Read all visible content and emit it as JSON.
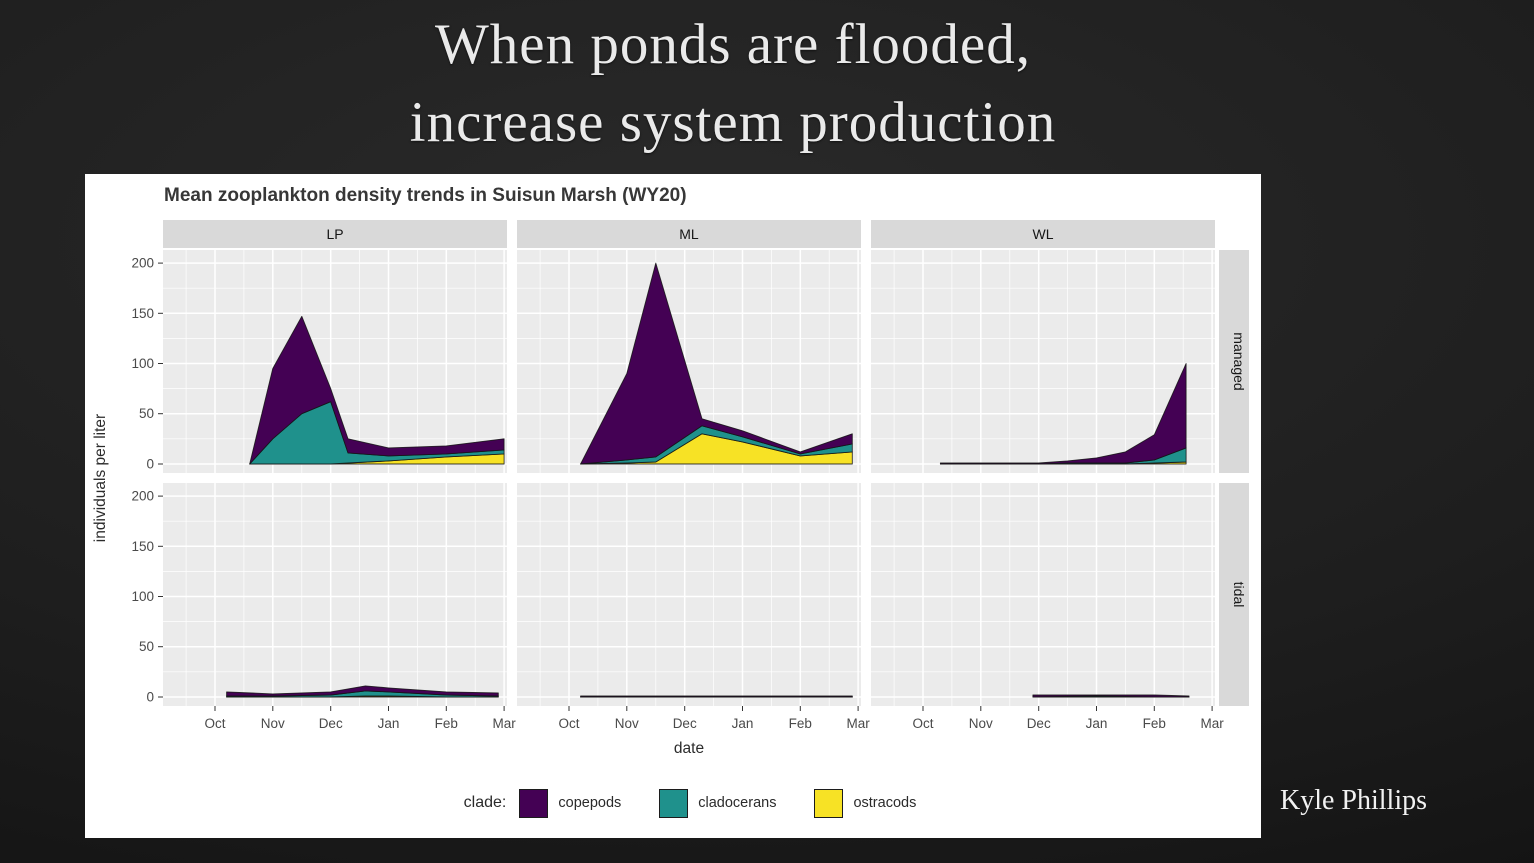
{
  "slide": {
    "title_line1": "When ponds are flooded,",
    "title_line2": "increase system production",
    "attribution": "Kyle Phillips"
  },
  "chart_data": {
    "type": "area",
    "title": "Mean zooplankton density trends in Suisun Marsh (WY20)",
    "xlabel": "date",
    "ylabel": "individuals per liter",
    "facet_cols": [
      "LP",
      "ML",
      "WL"
    ],
    "facet_rows": [
      "managed",
      "tidal"
    ],
    "x_ticks": [
      "Oct",
      "Nov",
      "Dec",
      "Jan",
      "Feb",
      "Mar"
    ],
    "y_ticks": [
      0,
      50,
      100,
      150,
      200
    ],
    "ylim": [
      -9,
      213
    ],
    "xlim": [
      -0.9,
      5.05
    ],
    "grid": "major+minor, white on grey panel",
    "legend_position": "bottom",
    "stack_order": [
      "ostracods",
      "cladocerans",
      "copepods"
    ],
    "colors": {
      "copepods": "#440154",
      "cladocerans": "#1f918c",
      "ostracods": "#f7e225",
      "panel_bg": "#ebebeb",
      "strip_bg": "#d9d9d9",
      "grid": "#ffffff",
      "outline": "#141414"
    },
    "legend": {
      "title": "clade:",
      "entries": [
        "copepods",
        "cladocerans",
        "ostracods"
      ]
    },
    "panels": {
      "managed": {
        "LP": {
          "x": [
            0.6,
            1.0,
            1.5,
            2.0,
            2.3,
            3.0,
            4.0,
            5.0
          ],
          "ostracods": [
            0,
            0,
            0,
            0,
            1,
            3,
            7,
            10
          ],
          "cladocerans": [
            0,
            25,
            50,
            62,
            10,
            5,
            3,
            4
          ],
          "copepods": [
            0,
            70,
            97,
            13,
            14,
            8,
            8,
            11
          ]
        },
        "ML": {
          "x": [
            0.2,
            1.0,
            1.5,
            2.3,
            3.0,
            4.0,
            4.9
          ],
          "ostracods": [
            0,
            1,
            2,
            30,
            22,
            8,
            12
          ],
          "cladocerans": [
            0,
            3,
            5,
            8,
            5,
            2,
            8
          ],
          "copepods": [
            0,
            86,
            193,
            7,
            6,
            2,
            10
          ]
        },
        "WL": {
          "x": [
            0.3,
            1.0,
            2.0,
            2.5,
            3.0,
            3.5,
            4.0,
            4.55
          ],
          "ostracods": [
            0,
            0,
            0,
            0,
            0,
            0,
            1,
            2
          ],
          "cladocerans": [
            0,
            0,
            0,
            1,
            1,
            1,
            3,
            14
          ],
          "copepods": [
            1,
            1,
            1,
            2,
            5,
            11,
            25,
            84
          ]
        }
      },
      "tidal": {
        "LP": {
          "x": [
            0.2,
            1.0,
            2.0,
            2.6,
            3.0,
            4.0,
            4.9
          ],
          "ostracods": [
            0,
            0,
            0,
            1,
            1,
            0,
            0
          ],
          "cladocerans": [
            1,
            1,
            2,
            5,
            4,
            2,
            1
          ],
          "copepods": [
            4,
            2,
            3,
            5,
            4,
            3,
            3
          ]
        },
        "ML": {
          "x": [
            0.2,
            2.5,
            4.9
          ],
          "ostracods": [
            0,
            0,
            0
          ],
          "cladocerans": [
            0,
            0,
            0
          ],
          "copepods": [
            1,
            1,
            1
          ]
        },
        "WL": {
          "x": [
            1.9,
            3.0,
            4.0,
            4.6
          ],
          "ostracods": [
            0,
            0,
            0,
            0
          ],
          "cladocerans": [
            0,
            1,
            0,
            0
          ],
          "copepods": [
            2,
            1,
            2,
            1
          ]
        }
      }
    }
  }
}
